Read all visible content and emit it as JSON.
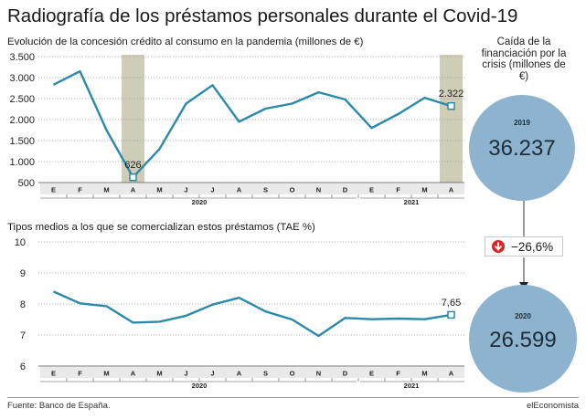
{
  "title": "Radiografía de los préstamos personales durante el Covid-19",
  "source": "Fuente: Banco de España.",
  "brand": "elEconomista",
  "colors": {
    "line": "#2a8aa8",
    "highlight": "#d0cdb6",
    "circle": "#8db3cf",
    "down": "#d9242a"
  },
  "chart_data": [
    {
      "type": "line",
      "title": "Evolución de la concesión crédito al consumo en la pandemia (millones de €)",
      "x": [
        "E",
        "F",
        "M",
        "A",
        "M",
        "J",
        "J",
        "A",
        "S",
        "O",
        "N",
        "D",
        "E",
        "F",
        "M",
        "A"
      ],
      "year_labels": [
        {
          "label": "2020"
        },
        {
          "label": "2021"
        }
      ],
      "values": [
        2830,
        3150,
        1750,
        626,
        1300,
        2380,
        2820,
        1950,
        2260,
        2380,
        2650,
        2480,
        1800,
        2130,
        2520,
        2322
      ],
      "ylim": [
        500,
        3500
      ],
      "yticks": [
        "3.500",
        "3.000",
        "2.500",
        "2.000",
        "1.500",
        "1.000",
        "500"
      ],
      "highlights": [
        3,
        15
      ],
      "annotations": [
        {
          "index": 3,
          "label": "626"
        },
        {
          "index": 15,
          "label": "2.322"
        }
      ],
      "grid": true
    },
    {
      "type": "line",
      "title": "Tipos medios a los que se comercializan estos préstamos (TAE %)",
      "x": [
        "E",
        "F",
        "M",
        "A",
        "M",
        "J",
        "J",
        "A",
        "S",
        "O",
        "N",
        "D",
        "E",
        "F",
        "M",
        "A"
      ],
      "year_labels": [
        {
          "label": "2020"
        },
        {
          "label": "2021"
        }
      ],
      "values": [
        8.4,
        8.02,
        7.93,
        7.4,
        7.43,
        7.62,
        7.98,
        8.2,
        7.76,
        7.5,
        6.97,
        7.55,
        7.51,
        7.53,
        7.51,
        7.65
      ],
      "ylim": [
        6,
        10
      ],
      "yticks": [
        "10",
        "9",
        "8",
        "7",
        "6"
      ],
      "annotations": [
        {
          "index": 15,
          "label": "7,65"
        }
      ],
      "grid": true
    }
  ],
  "side": {
    "heading": "Caída de la financiación por la crisis (millones de €)",
    "top": {
      "year": "2019",
      "value": "36.237"
    },
    "change": "−26,6%",
    "bottom": {
      "year": "2020",
      "value": "26.599"
    }
  }
}
